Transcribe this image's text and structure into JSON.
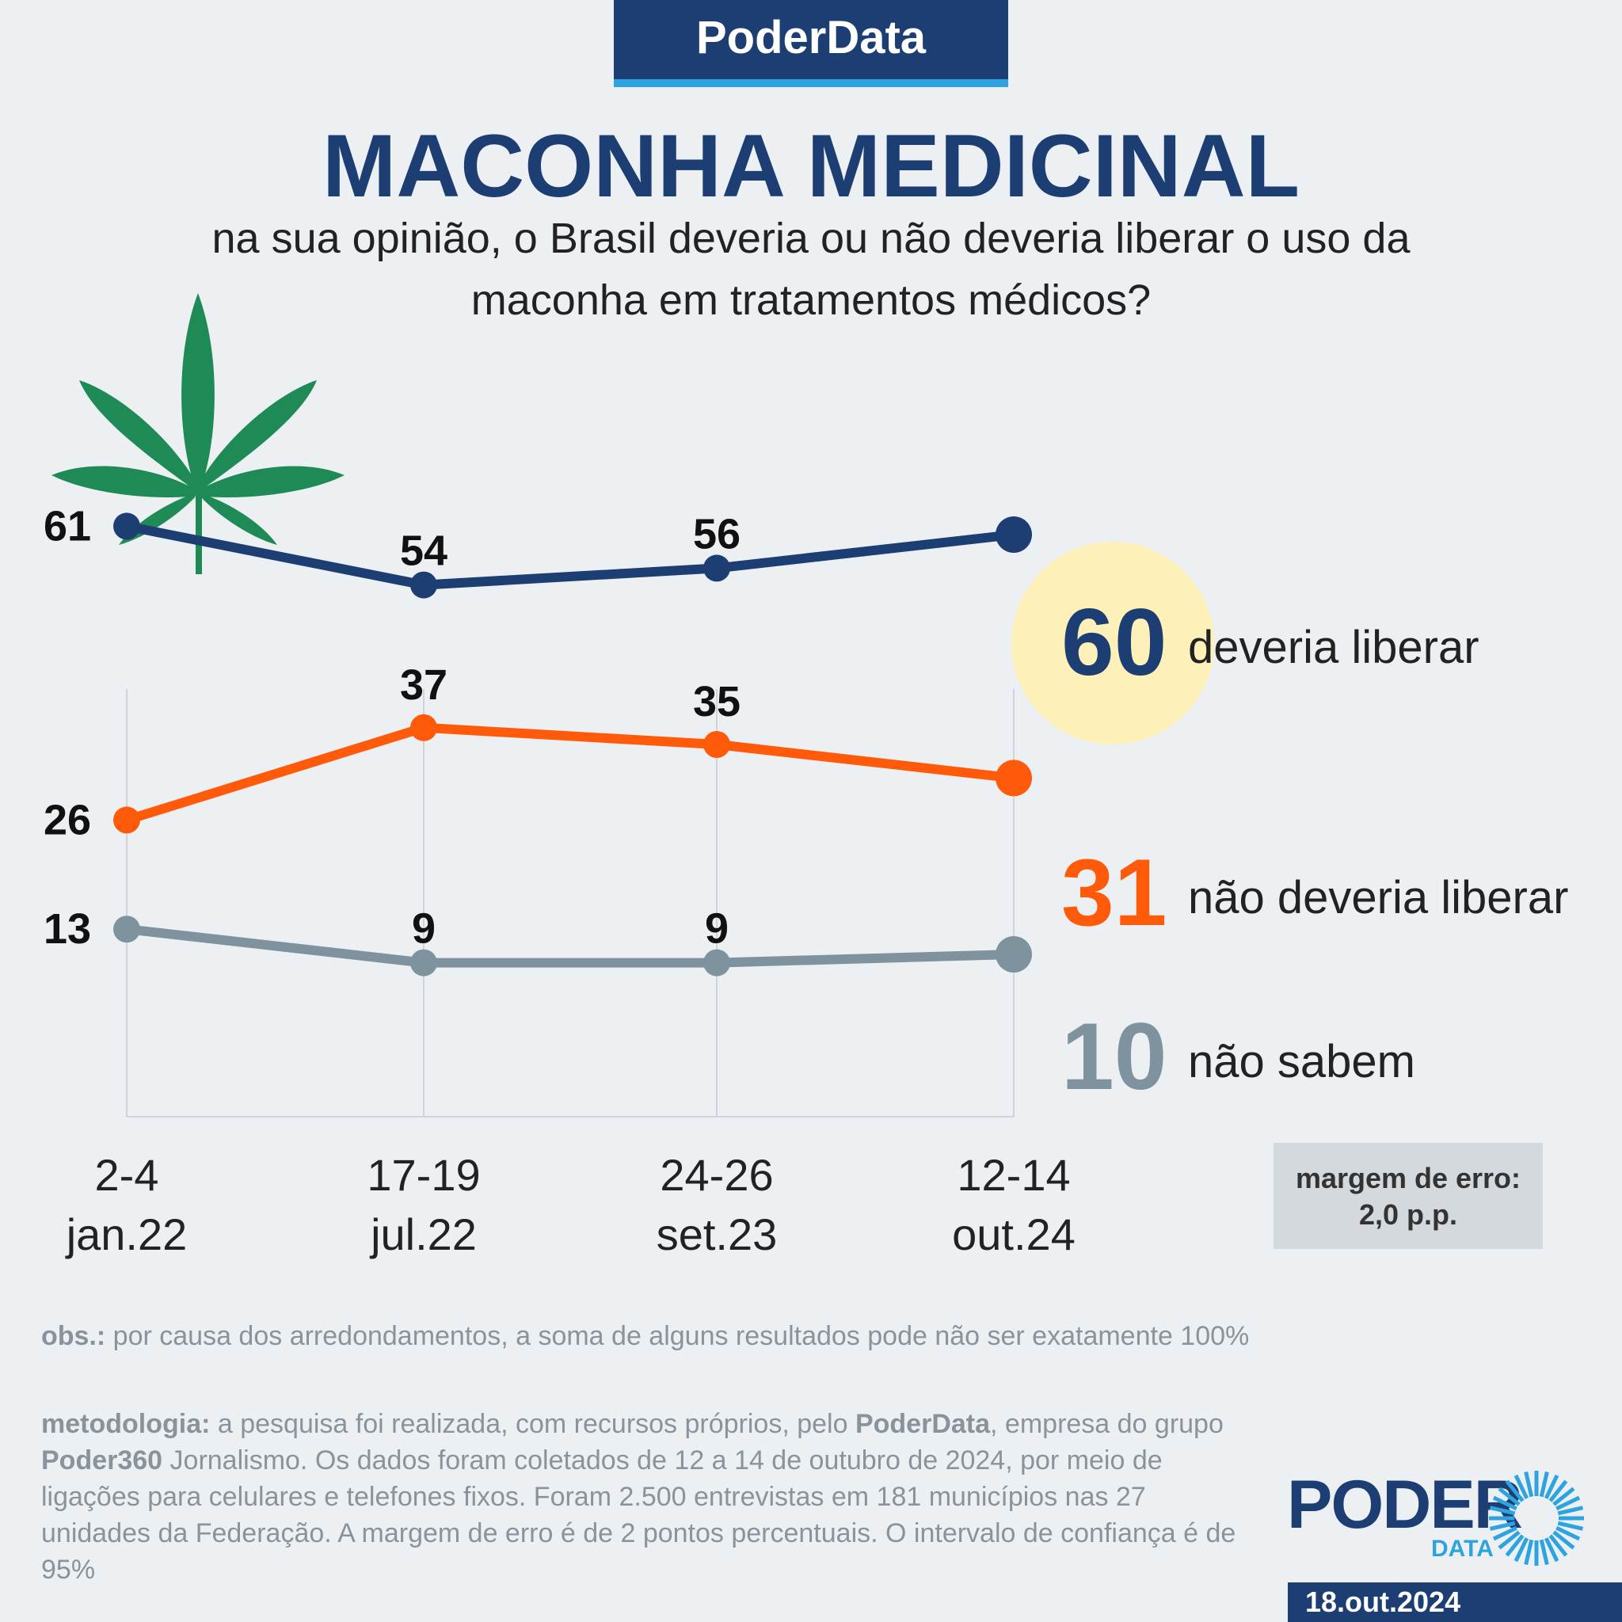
{
  "header": {
    "brand": "PoderData"
  },
  "title": "MACONHA MEDICINAL",
  "subtitle_lines": [
    "na sua opinião, o Brasil deveria ou não deveria liberar o uso da",
    "maconha em tratamentos médicos?"
  ],
  "margin_box": {
    "line1": "margem de erro:",
    "line2": "2,0 p.p."
  },
  "notes": {
    "obs_label": "obs.:",
    "obs_text": " por causa dos arredondamentos, a soma de alguns resultados pode não ser exatamente 100%",
    "met_label": "metodologia:",
    "met_text_1": " a pesquisa foi realizada, com recursos próprios, pelo ",
    "met_bold_1": "PoderData",
    "met_text_2": ", empresa do grupo ",
    "met_bold_2": "Poder360",
    "met_text_3": " Jornalismo. Os dados foram coletados de 12 a 14 de outubro de 2024, por meio de ligações para celulares e telefones fixos. Foram 2.500 entrevistas em 181 municípios nas 27 unidades da Federação. A margem de erro é de 2 pontos percentuais. O intervalo de confiança é de 95%"
  },
  "logo": {
    "word": "PODER",
    "sub": "DATA"
  },
  "date": "18.out.2024",
  "colors": {
    "navy": "#1c3e73",
    "orange": "#ff5a0a",
    "gray": "#7f939f",
    "highlight": "#fdf0b9",
    "leaf": "#1e8a55",
    "accent_blue": "#2fa3e0"
  },
  "icons": {
    "leaf": "cannabis-leaf-icon",
    "logo": "poder-data-logo"
  },
  "chart_data": {
    "type": "line",
    "categories": [
      [
        "2-4",
        "jan.22"
      ],
      [
        "17-19",
        "jul.22"
      ],
      [
        "24-26",
        "set.23"
      ],
      [
        "12-14",
        "out.24"
      ]
    ],
    "series": [
      {
        "name": "deveria liberar",
        "values": [
          61,
          54,
          56,
          60
        ],
        "color": "#1c3e73"
      },
      {
        "name": "não deveria liberar",
        "values": [
          26,
          37,
          35,
          31
        ],
        "color": "#ff5a0a"
      },
      {
        "name": "não sabem",
        "values": [
          13,
          9,
          9,
          10
        ],
        "color": "#7f939f"
      }
    ],
    "ylim": [
      0,
      70
    ],
    "grid": "vertical lines at each category"
  }
}
